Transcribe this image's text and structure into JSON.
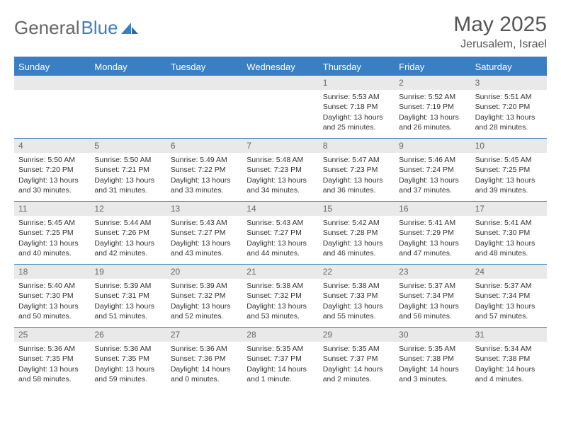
{
  "brand": {
    "part1": "General",
    "part2": "Blue"
  },
  "title": "May 2025",
  "location": "Jerusalem, Israel",
  "colors": {
    "accent": "#3a7fc4",
    "header_bg": "#3a7fc4",
    "header_text": "#ffffff",
    "daynum_bg": "#e9e9e9",
    "daynum_text": "#666666",
    "body_text": "#333333",
    "page_bg": "#ffffff"
  },
  "layout": {
    "columns": 7,
    "weeks": 5,
    "font_family": "Arial",
    "title_fontsize": 30,
    "location_fontsize": 16,
    "header_fontsize": 13,
    "cell_fontsize": 10.5
  },
  "day_names": [
    "Sunday",
    "Monday",
    "Tuesday",
    "Wednesday",
    "Thursday",
    "Friday",
    "Saturday"
  ],
  "weeks": [
    [
      null,
      null,
      null,
      null,
      {
        "n": "1",
        "sr": "5:53 AM",
        "ss": "7:18 PM",
        "dl": "13 hours and 25 minutes."
      },
      {
        "n": "2",
        "sr": "5:52 AM",
        "ss": "7:19 PM",
        "dl": "13 hours and 26 minutes."
      },
      {
        "n": "3",
        "sr": "5:51 AM",
        "ss": "7:20 PM",
        "dl": "13 hours and 28 minutes."
      }
    ],
    [
      {
        "n": "4",
        "sr": "5:50 AM",
        "ss": "7:20 PM",
        "dl": "13 hours and 30 minutes."
      },
      {
        "n": "5",
        "sr": "5:50 AM",
        "ss": "7:21 PM",
        "dl": "13 hours and 31 minutes."
      },
      {
        "n": "6",
        "sr": "5:49 AM",
        "ss": "7:22 PM",
        "dl": "13 hours and 33 minutes."
      },
      {
        "n": "7",
        "sr": "5:48 AM",
        "ss": "7:23 PM",
        "dl": "13 hours and 34 minutes."
      },
      {
        "n": "8",
        "sr": "5:47 AM",
        "ss": "7:23 PM",
        "dl": "13 hours and 36 minutes."
      },
      {
        "n": "9",
        "sr": "5:46 AM",
        "ss": "7:24 PM",
        "dl": "13 hours and 37 minutes."
      },
      {
        "n": "10",
        "sr": "5:45 AM",
        "ss": "7:25 PM",
        "dl": "13 hours and 39 minutes."
      }
    ],
    [
      {
        "n": "11",
        "sr": "5:45 AM",
        "ss": "7:25 PM",
        "dl": "13 hours and 40 minutes."
      },
      {
        "n": "12",
        "sr": "5:44 AM",
        "ss": "7:26 PM",
        "dl": "13 hours and 42 minutes."
      },
      {
        "n": "13",
        "sr": "5:43 AM",
        "ss": "7:27 PM",
        "dl": "13 hours and 43 minutes."
      },
      {
        "n": "14",
        "sr": "5:43 AM",
        "ss": "7:27 PM",
        "dl": "13 hours and 44 minutes."
      },
      {
        "n": "15",
        "sr": "5:42 AM",
        "ss": "7:28 PM",
        "dl": "13 hours and 46 minutes."
      },
      {
        "n": "16",
        "sr": "5:41 AM",
        "ss": "7:29 PM",
        "dl": "13 hours and 47 minutes."
      },
      {
        "n": "17",
        "sr": "5:41 AM",
        "ss": "7:30 PM",
        "dl": "13 hours and 48 minutes."
      }
    ],
    [
      {
        "n": "18",
        "sr": "5:40 AM",
        "ss": "7:30 PM",
        "dl": "13 hours and 50 minutes."
      },
      {
        "n": "19",
        "sr": "5:39 AM",
        "ss": "7:31 PM",
        "dl": "13 hours and 51 minutes."
      },
      {
        "n": "20",
        "sr": "5:39 AM",
        "ss": "7:32 PM",
        "dl": "13 hours and 52 minutes."
      },
      {
        "n": "21",
        "sr": "5:38 AM",
        "ss": "7:32 PM",
        "dl": "13 hours and 53 minutes."
      },
      {
        "n": "22",
        "sr": "5:38 AM",
        "ss": "7:33 PM",
        "dl": "13 hours and 55 minutes."
      },
      {
        "n": "23",
        "sr": "5:37 AM",
        "ss": "7:34 PM",
        "dl": "13 hours and 56 minutes."
      },
      {
        "n": "24",
        "sr": "5:37 AM",
        "ss": "7:34 PM",
        "dl": "13 hours and 57 minutes."
      }
    ],
    [
      {
        "n": "25",
        "sr": "5:36 AM",
        "ss": "7:35 PM",
        "dl": "13 hours and 58 minutes."
      },
      {
        "n": "26",
        "sr": "5:36 AM",
        "ss": "7:35 PM",
        "dl": "13 hours and 59 minutes."
      },
      {
        "n": "27",
        "sr": "5:36 AM",
        "ss": "7:36 PM",
        "dl": "14 hours and 0 minutes."
      },
      {
        "n": "28",
        "sr": "5:35 AM",
        "ss": "7:37 PM",
        "dl": "14 hours and 1 minute."
      },
      {
        "n": "29",
        "sr": "5:35 AM",
        "ss": "7:37 PM",
        "dl": "14 hours and 2 minutes."
      },
      {
        "n": "30",
        "sr": "5:35 AM",
        "ss": "7:38 PM",
        "dl": "14 hours and 3 minutes."
      },
      {
        "n": "31",
        "sr": "5:34 AM",
        "ss": "7:38 PM",
        "dl": "14 hours and 4 minutes."
      }
    ]
  ],
  "labels": {
    "sunrise": "Sunrise:",
    "sunset": "Sunset:",
    "daylight": "Daylight:"
  }
}
